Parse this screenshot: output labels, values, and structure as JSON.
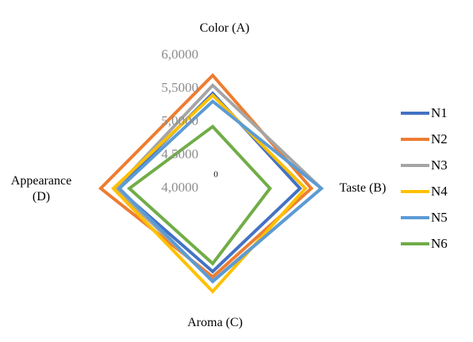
{
  "chart_data": {
    "type": "radar",
    "categories": [
      "Color (A)",
      "Taste (B)",
      "Aroma (C)",
      "Appearance (D)"
    ],
    "center_label": "0",
    "rlim": [
      4.0,
      6.0
    ],
    "rticks": [
      {
        "value": 6.0,
        "label": "6,0000"
      },
      {
        "value": 5.5,
        "label": "5,5000"
      },
      {
        "value": 5.0,
        "label": "5,0000"
      },
      {
        "value": 4.5,
        "label": "4,5000"
      },
      {
        "value": 4.0,
        "label": "4,0000"
      }
    ],
    "legend": "right",
    "series": [
      {
        "name": "N1",
        "color": "#4472c4",
        "values": [
          5.43,
          5.31,
          5.25,
          5.43
        ]
      },
      {
        "name": "N2",
        "color": "#ed7d31",
        "values": [
          5.7,
          5.48,
          5.33,
          5.68
        ]
      },
      {
        "name": "N3",
        "color": "#a5a5a5",
        "values": [
          5.55,
          5.63,
          5.39,
          5.46
        ]
      },
      {
        "name": "N4",
        "color": "#ffc000",
        "values": [
          5.4,
          5.39,
          5.55,
          5.49
        ]
      },
      {
        "name": "N5",
        "color": "#5b9bd5",
        "values": [
          5.31,
          5.63,
          5.4,
          5.4
        ]
      },
      {
        "name": "N6",
        "color": "#70ad47",
        "values": [
          4.93,
          4.86,
          5.13,
          5.25
        ]
      }
    ]
  }
}
